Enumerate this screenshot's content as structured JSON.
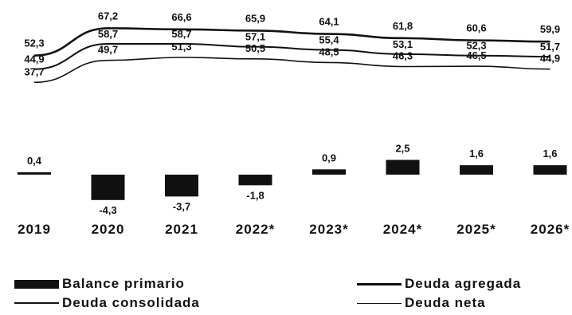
{
  "chart_data": {
    "type": "bar",
    "categories": [
      "2019",
      "2020",
      "2021",
      "2022*",
      "2023*",
      "2024*",
      "2025*",
      "2026*"
    ],
    "series": [
      {
        "name": "Deuda agregada",
        "kind": "line",
        "values": [
          52.3,
          67.2,
          66.6,
          65.9,
          64.1,
          61.8,
          60.6,
          59.9
        ]
      },
      {
        "name": "Deuda consolidada",
        "kind": "line",
        "values": [
          44.9,
          58.7,
          58.7,
          57.1,
          55.4,
          53.1,
          52.3,
          51.7
        ]
      },
      {
        "name": "Deuda neta",
        "kind": "line",
        "values": [
          37.7,
          49.7,
          51.3,
          50.5,
          48.5,
          46.3,
          46.5,
          44.9
        ]
      },
      {
        "name": "Balance primario",
        "kind": "bar",
        "values": [
          0.4,
          -4.3,
          -3.7,
          -1.8,
          0.9,
          2.5,
          1.6,
          1.6
        ]
      }
    ],
    "value_labels": {
      "Deuda agregada": [
        "52,3",
        "67,2",
        "66,6",
        "65,9",
        "64,1",
        "61,8",
        "60,6",
        "59,9"
      ],
      "Deuda consolidada": [
        "44,9",
        "58,7",
        "58,7",
        "57,1",
        "55,4",
        "53,1",
        "52,3",
        "51,7"
      ],
      "Deuda neta": [
        "37,7",
        "49,7",
        "51,3",
        "50,5",
        "48,5",
        "46,3",
        "46,5",
        "44,9"
      ],
      "Balance primario": [
        "0,4",
        "-4,3",
        "-3,7",
        "-1,8",
        "0,9",
        "2,5",
        "1,6",
        "1,6"
      ]
    },
    "legend": {
      "position": "bottom",
      "entries": [
        "Balance primario",
        "Deuda agregada",
        "Deuda consolidada",
        "Deuda neta"
      ]
    },
    "title": "",
    "xlabel": "",
    "ylabel": "",
    "grid": false,
    "color": "#111111"
  }
}
